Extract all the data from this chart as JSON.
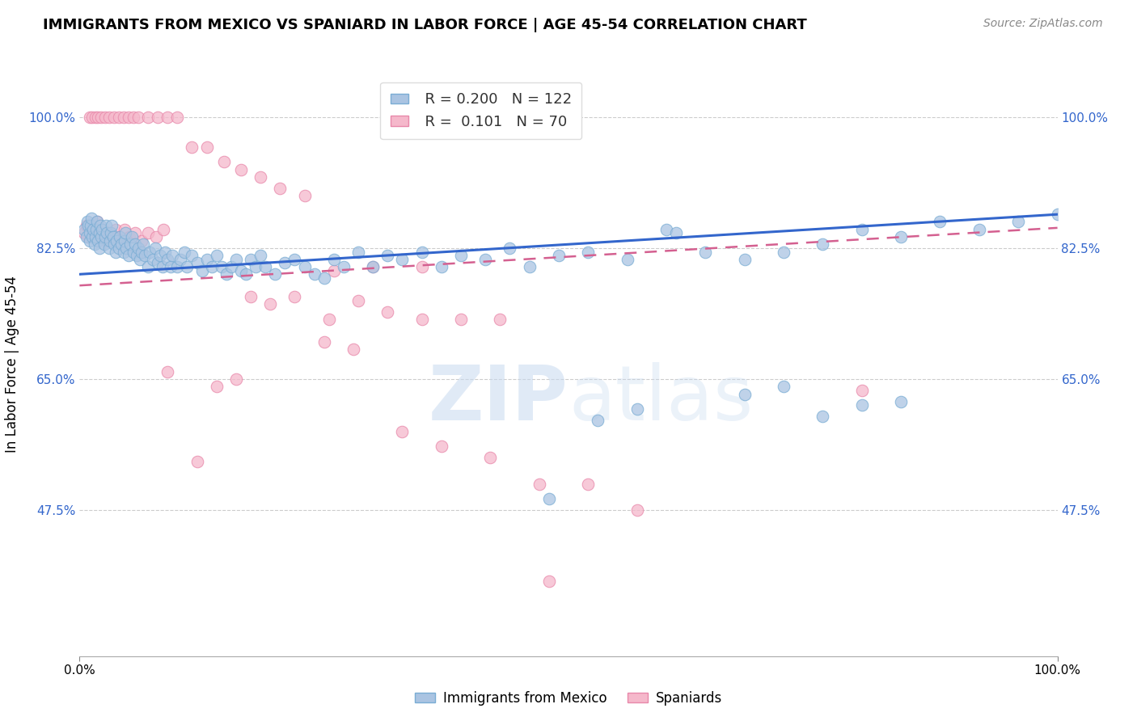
{
  "title": "IMMIGRANTS FROM MEXICO VS SPANIARD IN LABOR FORCE | AGE 45-54 CORRELATION CHART",
  "source": "Source: ZipAtlas.com",
  "ylabel": "In Labor Force | Age 45-54",
  "xlim": [
    0,
    1
  ],
  "ylim": [
    0.28,
    1.06
  ],
  "xtick_labels": [
    "0.0%",
    "100.0%"
  ],
  "ytick_labels": [
    "47.5%",
    "65.0%",
    "82.5%",
    "100.0%"
  ],
  "ytick_values": [
    0.475,
    0.65,
    0.825,
    1.0
  ],
  "legend_R_mexico": "0.200",
  "legend_N_mexico": "122",
  "legend_R_spaniard": "0.101",
  "legend_N_spaniard": "70",
  "color_mexico": "#aac4e2",
  "color_mexico_edge": "#7aadd4",
  "color_spaniard": "#f5b8cb",
  "color_spaniard_edge": "#e888aa",
  "color_mexico_line": "#3366cc",
  "color_spaniard_line": "#d46090",
  "watermark_text": "ZIPatlas",
  "mexico_line_x": [
    0.0,
    1.0
  ],
  "mexico_line_y": [
    0.79,
    0.87
  ],
  "spaniard_line_x": [
    0.0,
    1.0
  ],
  "spaniard_line_y": [
    0.775,
    0.852
  ],
  "background_color": "#ffffff",
  "grid_color": "#cccccc",
  "mexico_scatter_x": [
    0.005,
    0.007,
    0.008,
    0.009,
    0.01,
    0.01,
    0.011,
    0.012,
    0.013,
    0.014,
    0.015,
    0.016,
    0.017,
    0.018,
    0.019,
    0.02,
    0.02,
    0.021,
    0.022,
    0.023,
    0.025,
    0.026,
    0.027,
    0.028,
    0.03,
    0.031,
    0.032,
    0.033,
    0.034,
    0.035,
    0.037,
    0.038,
    0.04,
    0.041,
    0.043,
    0.045,
    0.046,
    0.047,
    0.048,
    0.05,
    0.052,
    0.053,
    0.055,
    0.057,
    0.058,
    0.06,
    0.062,
    0.063,
    0.065,
    0.067,
    0.07,
    0.072,
    0.075,
    0.077,
    0.08,
    0.082,
    0.085,
    0.087,
    0.09,
    0.093,
    0.095,
    0.1,
    0.103,
    0.107,
    0.11,
    0.115,
    0.12,
    0.125,
    0.13,
    0.135,
    0.14,
    0.145,
    0.15,
    0.155,
    0.16,
    0.165,
    0.17,
    0.175,
    0.18,
    0.185,
    0.19,
    0.2,
    0.21,
    0.22,
    0.23,
    0.24,
    0.25,
    0.26,
    0.27,
    0.285,
    0.3,
    0.315,
    0.33,
    0.35,
    0.37,
    0.39,
    0.415,
    0.44,
    0.46,
    0.49,
    0.52,
    0.56,
    0.6,
    0.64,
    0.68,
    0.72,
    0.76,
    0.8,
    0.84,
    0.88,
    0.92,
    0.96,
    1.0,
    0.68,
    0.72,
    0.76,
    0.8,
    0.84,
    0.48,
    0.53,
    0.57,
    0.61
  ],
  "mexico_scatter_y": [
    0.85,
    0.84,
    0.86,
    0.855,
    0.835,
    0.845,
    0.855,
    0.865,
    0.84,
    0.85,
    0.83,
    0.84,
    0.85,
    0.86,
    0.835,
    0.825,
    0.845,
    0.855,
    0.84,
    0.85,
    0.83,
    0.84,
    0.855,
    0.845,
    0.825,
    0.835,
    0.845,
    0.855,
    0.84,
    0.83,
    0.82,
    0.835,
    0.825,
    0.84,
    0.83,
    0.82,
    0.835,
    0.845,
    0.825,
    0.815,
    0.83,
    0.84,
    0.82,
    0.83,
    0.815,
    0.825,
    0.81,
    0.82,
    0.83,
    0.815,
    0.8,
    0.82,
    0.81,
    0.825,
    0.805,
    0.815,
    0.8,
    0.82,
    0.81,
    0.8,
    0.815,
    0.8,
    0.81,
    0.82,
    0.8,
    0.815,
    0.805,
    0.795,
    0.81,
    0.8,
    0.815,
    0.8,
    0.79,
    0.8,
    0.81,
    0.795,
    0.79,
    0.81,
    0.8,
    0.815,
    0.8,
    0.79,
    0.805,
    0.81,
    0.8,
    0.79,
    0.785,
    0.81,
    0.8,
    0.82,
    0.8,
    0.815,
    0.81,
    0.82,
    0.8,
    0.815,
    0.81,
    0.825,
    0.8,
    0.815,
    0.82,
    0.81,
    0.85,
    0.82,
    0.81,
    0.82,
    0.83,
    0.85,
    0.84,
    0.86,
    0.85,
    0.86,
    0.87,
    0.63,
    0.64,
    0.6,
    0.615,
    0.62,
    0.49,
    0.595,
    0.61,
    0.845
  ],
  "spaniard_scatter_x": [
    0.005,
    0.007,
    0.009,
    0.012,
    0.015,
    0.018,
    0.021,
    0.024,
    0.027,
    0.03,
    0.033,
    0.037,
    0.041,
    0.046,
    0.051,
    0.057,
    0.063,
    0.07,
    0.078,
    0.086,
    0.01,
    0.013,
    0.016,
    0.019,
    0.022,
    0.026,
    0.03,
    0.035,
    0.04,
    0.045,
    0.05,
    0.055,
    0.06,
    0.07,
    0.08,
    0.09,
    0.1,
    0.115,
    0.13,
    0.148,
    0.165,
    0.185,
    0.205,
    0.23,
    0.255,
    0.285,
    0.315,
    0.35,
    0.39,
    0.43,
    0.175,
    0.195,
    0.22,
    0.25,
    0.28,
    0.14,
    0.16,
    0.33,
    0.37,
    0.42,
    0.47,
    0.52,
    0.57,
    0.48,
    0.8,
    0.26,
    0.3,
    0.35,
    0.12,
    0.09
  ],
  "spaniard_scatter_y": [
    0.845,
    0.855,
    0.84,
    0.855,
    0.845,
    0.86,
    0.84,
    0.85,
    0.835,
    0.845,
    0.84,
    0.85,
    0.84,
    0.85,
    0.84,
    0.845,
    0.835,
    0.845,
    0.84,
    0.85,
    1.0,
    1.0,
    1.0,
    1.0,
    1.0,
    1.0,
    1.0,
    1.0,
    1.0,
    1.0,
    1.0,
    1.0,
    1.0,
    1.0,
    1.0,
    1.0,
    1.0,
    0.96,
    0.96,
    0.94,
    0.93,
    0.92,
    0.905,
    0.895,
    0.73,
    0.755,
    0.74,
    0.73,
    0.73,
    0.73,
    0.76,
    0.75,
    0.76,
    0.7,
    0.69,
    0.64,
    0.65,
    0.58,
    0.56,
    0.545,
    0.51,
    0.51,
    0.475,
    0.38,
    0.635,
    0.795,
    0.8,
    0.8,
    0.54,
    0.66
  ]
}
